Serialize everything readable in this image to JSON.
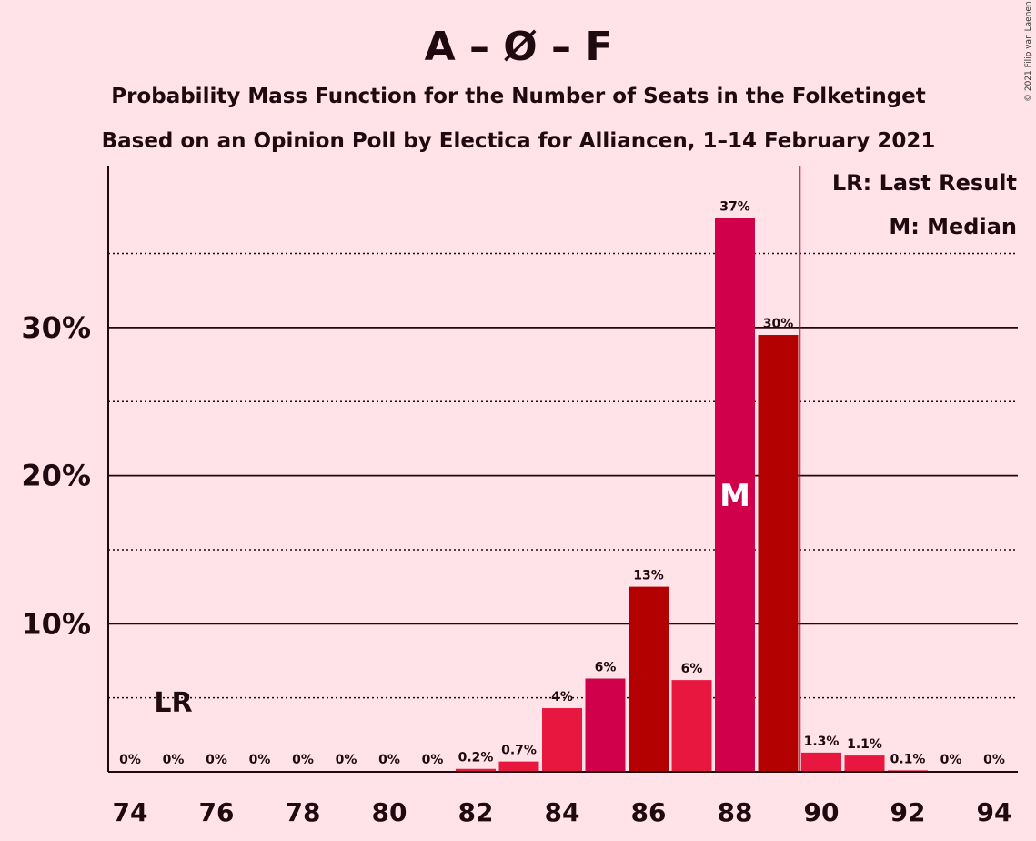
{
  "chart_data": {
    "type": "bar",
    "title": "A – Ø – F",
    "subtitle_line1": "Probability Mass Function for the Number of Seats in the Folketinget",
    "subtitle_line2": "Based on an Opinion Poll by Electica for Alliancen, 1–14 February 2021",
    "copyright": "© 2021 Filip van Laenen",
    "legend_lr": "LR: Last Result",
    "legend_m": "M: Median",
    "lr_label": "LR",
    "median_label": "M",
    "last_result_seat": 75,
    "median_seat": 88,
    "majority_line_seat": 89.5,
    "categories": [
      74,
      75,
      76,
      77,
      78,
      79,
      80,
      81,
      82,
      83,
      84,
      85,
      86,
      87,
      88,
      89,
      90,
      91,
      92,
      93,
      94
    ],
    "values": [
      0,
      0,
      0,
      0,
      0,
      0,
      0,
      0,
      0.2,
      0.7,
      4.3,
      6.3,
      12.5,
      6.2,
      37.4,
      29.5,
      1.3,
      1.1,
      0.1,
      0,
      0
    ],
    "data_labels": [
      "0%",
      "0%",
      "0%",
      "0%",
      "0%",
      "0%",
      "0%",
      "0%",
      "0.2%",
      "0.7%",
      "4%",
      "6%",
      "13%",
      "6%",
      "37%",
      "30%",
      "1.3%",
      "1.1%",
      "0.1%",
      "0%",
      "0%"
    ],
    "xtick_labels": [
      "74",
      "76",
      "78",
      "80",
      "82",
      "84",
      "86",
      "88",
      "90",
      "92",
      "94"
    ],
    "ytick_labels": [
      "10%",
      "20%",
      "30%"
    ],
    "ytick_values": [
      10,
      20,
      30
    ],
    "minor_grid_values": [
      5,
      15,
      25,
      35
    ],
    "ylim": [
      0,
      41
    ],
    "xlabel": "",
    "ylabel": "",
    "colors": {
      "background": "#ffe3e8",
      "bar_red": "#e8173f",
      "bar_crimson": "#d0004b",
      "bar_dark": "#b30000",
      "majority_line": "#c0003b",
      "text": "#1e0a10"
    }
  }
}
